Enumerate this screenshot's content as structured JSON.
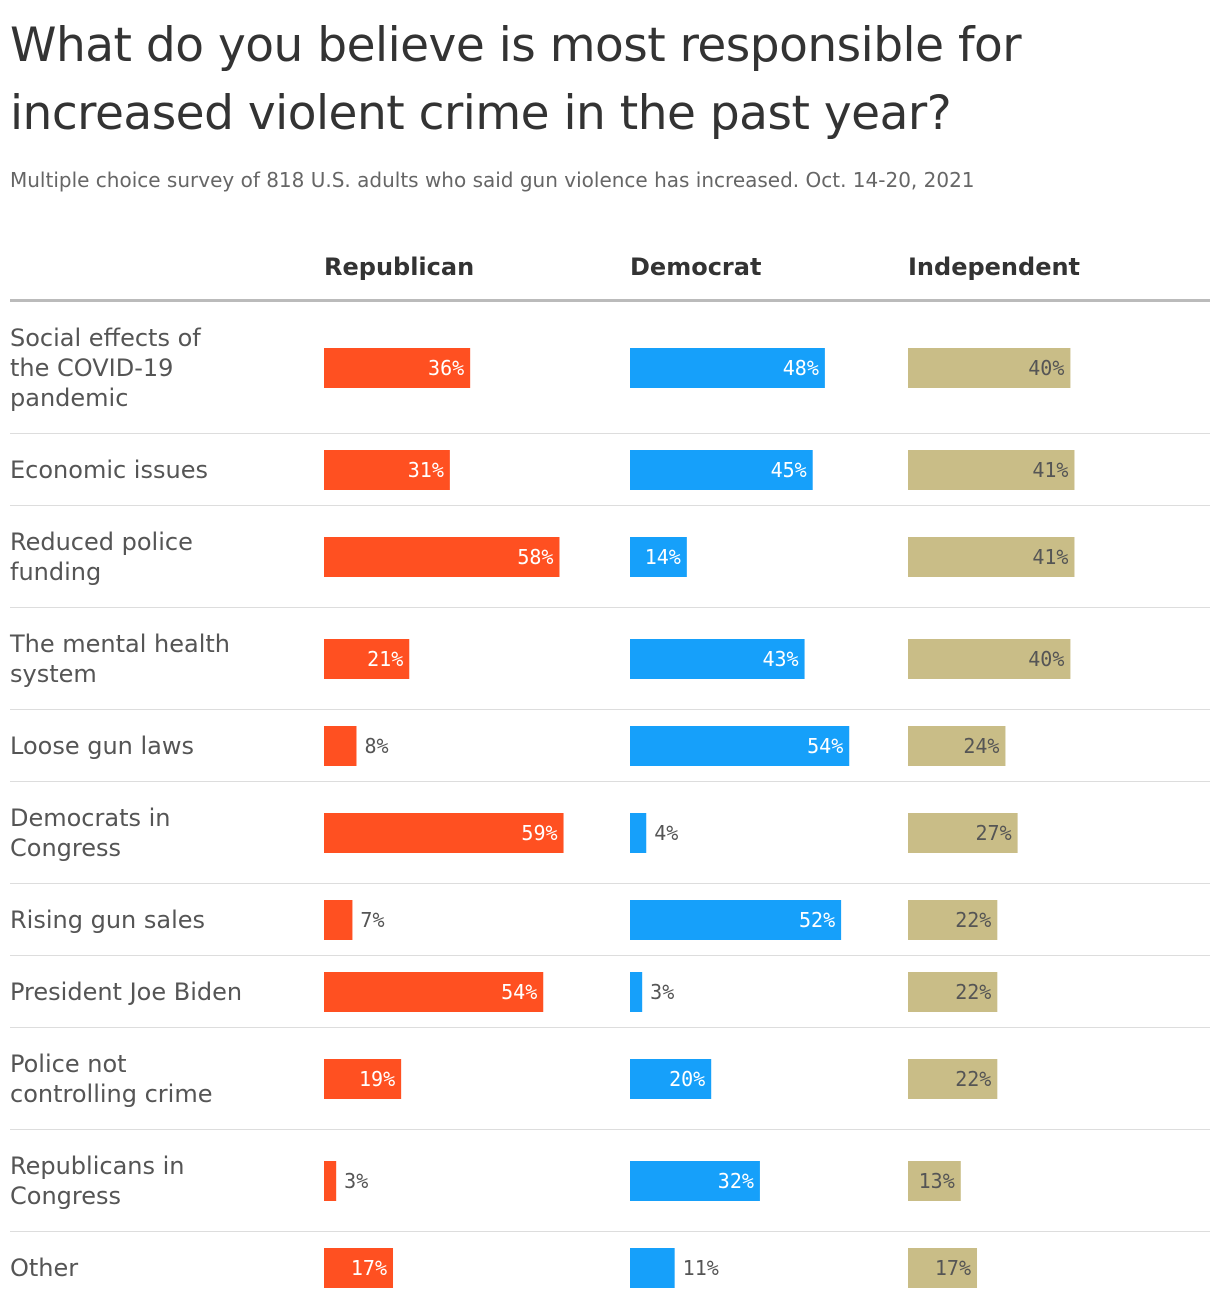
{
  "title": "What do you believe is most responsible for increased violent crime in the past year?",
  "subtitle": "Multiple choice survey of 818 U.S. adults who said gun violence has increased. Oct. 14-20, 2021",
  "chart_data": {
    "type": "bar",
    "title": "What do you believe is most responsible for increased violent crime in the past year?",
    "subtitle": "Multiple choice survey of 818 U.S. adults who said gun violence has increased. Oct. 14-20, 2021",
    "categories": [
      "Social effects of the COVID-19 pandemic",
      "Economic issues",
      "Reduced police funding",
      "The mental health system",
      "Loose gun laws",
      "Democrats in Congress",
      "Rising gun sales",
      "President Joe Biden",
      "Police not controlling crime",
      "Republicans in Congress",
      "Other"
    ],
    "category_lines": [
      [
        "Social effects of",
        "the COVID-19",
        "pandemic"
      ],
      [
        "Economic issues"
      ],
      [
        "Reduced police",
        "funding"
      ],
      [
        "The mental health",
        "system"
      ],
      [
        "Loose gun laws"
      ],
      [
        "Democrats in",
        "Congress"
      ],
      [
        "Rising gun sales"
      ],
      [
        "President Joe Biden"
      ],
      [
        "Police not",
        "controlling crime"
      ],
      [
        "Republicans in",
        "Congress"
      ],
      [
        "Other"
      ]
    ],
    "series": [
      {
        "name": "Republican",
        "color": "#ff5021",
        "label_color": "#ffffff",
        "values": [
          36,
          31,
          58,
          21,
          8,
          59,
          7,
          54,
          19,
          3,
          17
        ]
      },
      {
        "name": "Democrat",
        "color": "#16a0fa",
        "label_color": "#ffffff",
        "values": [
          48,
          45,
          14,
          43,
          54,
          4,
          52,
          3,
          20,
          32,
          11
        ]
      },
      {
        "name": "Independent",
        "color": "#c9bd87",
        "label_color": "#555555",
        "values": [
          40,
          41,
          41,
          40,
          24,
          27,
          22,
          22,
          22,
          13,
          17
        ]
      }
    ],
    "value_suffix": "%",
    "xlim": [
      0,
      100
    ],
    "legend": "column headers",
    "grid": false
  }
}
